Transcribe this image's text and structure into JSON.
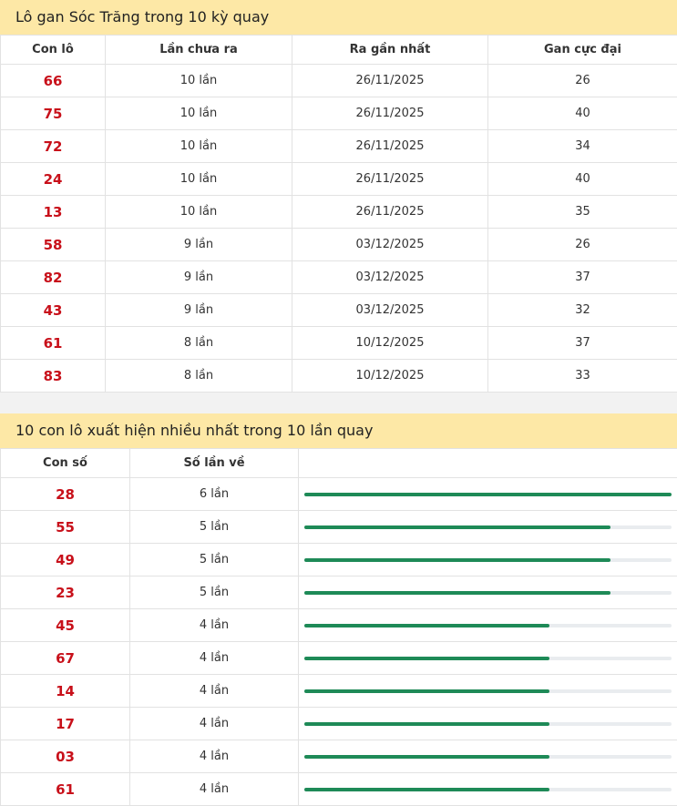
{
  "gan": {
    "title": "Lô gan Sóc Trăng trong 10 kỳ quay",
    "headers": [
      "Con lô",
      "Lần chưa ra",
      "Ra gần nhất",
      "Gan cực đại"
    ],
    "rows": [
      [
        "66",
        "10 lần",
        "26/11/2025",
        "26"
      ],
      [
        "75",
        "10 lần",
        "26/11/2025",
        "40"
      ],
      [
        "72",
        "10 lần",
        "26/11/2025",
        "34"
      ],
      [
        "24",
        "10 lần",
        "26/11/2025",
        "40"
      ],
      [
        "13",
        "10 lần",
        "26/11/2025",
        "35"
      ],
      [
        "58",
        "9 lần",
        "03/12/2025",
        "26"
      ],
      [
        "82",
        "9 lần",
        "03/12/2025",
        "37"
      ],
      [
        "43",
        "9 lần",
        "03/12/2025",
        "32"
      ],
      [
        "61",
        "8 lần",
        "10/12/2025",
        "37"
      ],
      [
        "83",
        "8 lần",
        "10/12/2025",
        "33"
      ]
    ]
  },
  "frequent": {
    "title": "10 con lô xuất hiện nhiều nhất trong 10 lần quay",
    "headers": [
      "Con số",
      "Số lần về"
    ],
    "rows": [
      {
        "number": "28",
        "count": 6,
        "count_label": "6 lần"
      },
      {
        "number": "55",
        "count": 5,
        "count_label": "5 lần"
      },
      {
        "number": "49",
        "count": 5,
        "count_label": "5 lần"
      },
      {
        "number": "23",
        "count": 5,
        "count_label": "5 lần"
      },
      {
        "number": "45",
        "count": 4,
        "count_label": "4 lần"
      },
      {
        "number": "67",
        "count": 4,
        "count_label": "4 lần"
      },
      {
        "number": "14",
        "count": 4,
        "count_label": "4 lần"
      },
      {
        "number": "17",
        "count": 4,
        "count_label": "4 lần"
      },
      {
        "number": "03",
        "count": 4,
        "count_label": "4 lần"
      },
      {
        "number": "61",
        "count": 4,
        "count_label": "4 lần"
      }
    ]
  }
}
